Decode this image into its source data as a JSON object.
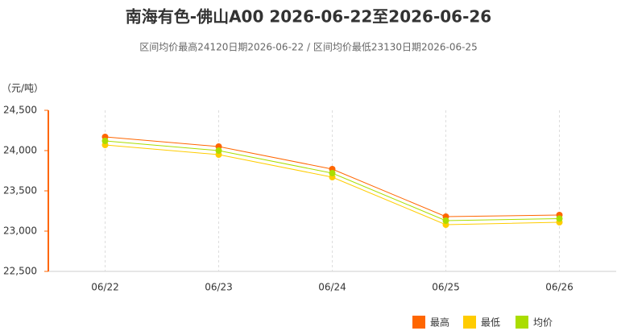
{
  "chart_data": {
    "type": "line",
    "title": "南海有色-佛山A00 2026-06-22至2026-06-26",
    "subtitle": "区间均价最高24120日期2026-06-22 / 区间均价最低23130日期2026-06-25",
    "y_label": "（元/吨）",
    "categories": [
      "06/22",
      "06/23",
      "06/24",
      "06/25",
      "06/26"
    ],
    "series": [
      {
        "name": "最高",
        "color": "#ff6600",
        "values": [
          24170,
          24050,
          23770,
          23180,
          23200
        ]
      },
      {
        "name": "最低",
        "color": "#ffcc00",
        "values": [
          24070,
          23950,
          23670,
          23080,
          23110
        ]
      },
      {
        "name": "均价",
        "color": "#aadd00",
        "values": [
          24120,
          24000,
          23720,
          23130,
          23155
        ]
      }
    ],
    "ylim": [
      22500,
      24500
    ],
    "yticks": [
      {
        "value": 22500,
        "label": "22,500"
      },
      {
        "value": 23000,
        "label": "23,000"
      },
      {
        "value": 23500,
        "label": "23,500"
      },
      {
        "value": 24000,
        "label": "24,000"
      },
      {
        "value": 24500,
        "label": "24,500"
      }
    ],
    "grid": true,
    "legend": "bottom-right"
  }
}
